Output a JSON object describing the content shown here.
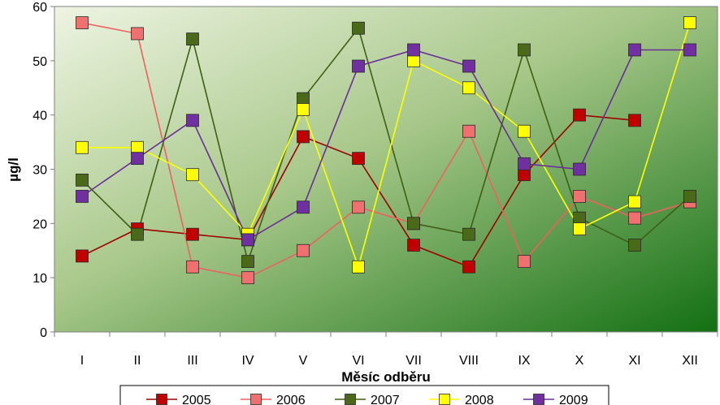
{
  "chart_data": {
    "type": "line",
    "title": "",
    "xlabel": "Měsíc odběru",
    "ylabel": "µg/l",
    "ylim": [
      0,
      60
    ],
    "yticks": [
      "0",
      "10",
      "20",
      "30",
      "40",
      "50",
      "60"
    ],
    "grid": false,
    "legend_position": "bottom",
    "categories": [
      "I",
      "II",
      "III",
      "IV",
      "V",
      "VI",
      "VII",
      "VIII",
      "IX",
      "X",
      "XI",
      "XII"
    ],
    "series": [
      {
        "name": "2005",
        "color": "#c00000",
        "line_color": "#a00000",
        "values": [
          14,
          19,
          18,
          17,
          36,
          32,
          16,
          12,
          29,
          40,
          39,
          null
        ]
      },
      {
        "name": "2006",
        "color": "#f07070",
        "line_color": "#f06060",
        "values": [
          57,
          55,
          12,
          10,
          15,
          23,
          20,
          37,
          13,
          25,
          21,
          24
        ]
      },
      {
        "name": "2007",
        "color": "#4a6a1a",
        "line_color": "#3f5f14",
        "values": [
          28,
          18,
          54,
          13,
          43,
          56,
          20,
          18,
          52,
          21,
          16,
          25
        ]
      },
      {
        "name": "2008",
        "color": "#ffff00",
        "line_color": "#ffff00",
        "values": [
          34,
          34,
          29,
          18,
          41,
          12,
          50,
          45,
          37,
          19,
          24,
          57
        ]
      },
      {
        "name": "2009",
        "color": "#7030a0",
        "line_color": "#6a2d9a",
        "values": [
          25,
          32,
          39,
          17,
          23,
          49,
          52,
          49,
          31,
          30,
          52,
          52
        ]
      }
    ]
  }
}
